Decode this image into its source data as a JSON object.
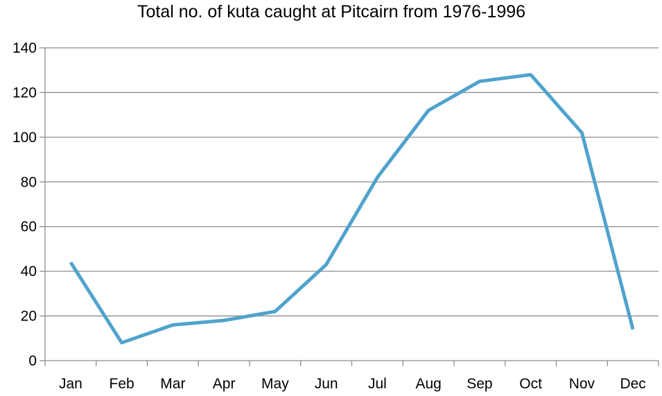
{
  "chart_data": {
    "type": "line",
    "title": "Total no. of kuta caught at Pitcairn from 1976-1996",
    "xlabel": "",
    "ylabel": "",
    "categories": [
      "Jan",
      "Feb",
      "Mar",
      "Apr",
      "May",
      "Jun",
      "Jul",
      "Aug",
      "Sep",
      "Oct",
      "Nov",
      "Dec"
    ],
    "series": [
      {
        "values": [
          44,
          8,
          16,
          18,
          22,
          43,
          82,
          112,
          125,
          128,
          102,
          14
        ]
      }
    ],
    "ylim": [
      0,
      140
    ],
    "yticks": [
      0,
      20,
      40,
      60,
      80,
      100,
      120,
      140
    ],
    "grid": true,
    "legend": "none",
    "line_color": "#4fa3cc"
  }
}
